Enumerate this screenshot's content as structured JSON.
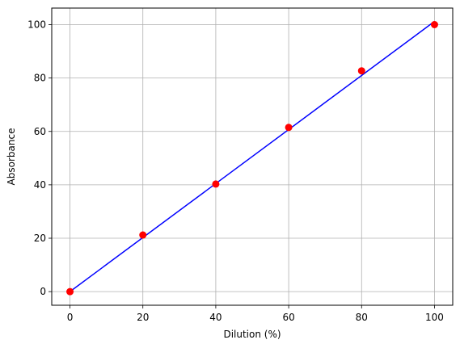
{
  "chart_data": {
    "type": "line",
    "xlabel": "Dilution (%)",
    "ylabel": "Absorbance",
    "xlim": [
      -5,
      105
    ],
    "ylim": [
      -5.1,
      106.2
    ],
    "xticks": [
      0,
      20,
      40,
      60,
      80,
      100
    ],
    "yticks": [
      0,
      20,
      40,
      60,
      80,
      100
    ],
    "grid": true,
    "series": [
      {
        "kind": "line",
        "color": "#0000ff",
        "x": [
          0,
          100
        ],
        "y": [
          0,
          101.2
        ]
      },
      {
        "kind": "scatter",
        "color": "#ff0000",
        "x": [
          0,
          20,
          40,
          60,
          80,
          100
        ],
        "y": [
          0,
          21.2,
          40.3,
          61.5,
          82.7,
          100
        ]
      }
    ]
  }
}
